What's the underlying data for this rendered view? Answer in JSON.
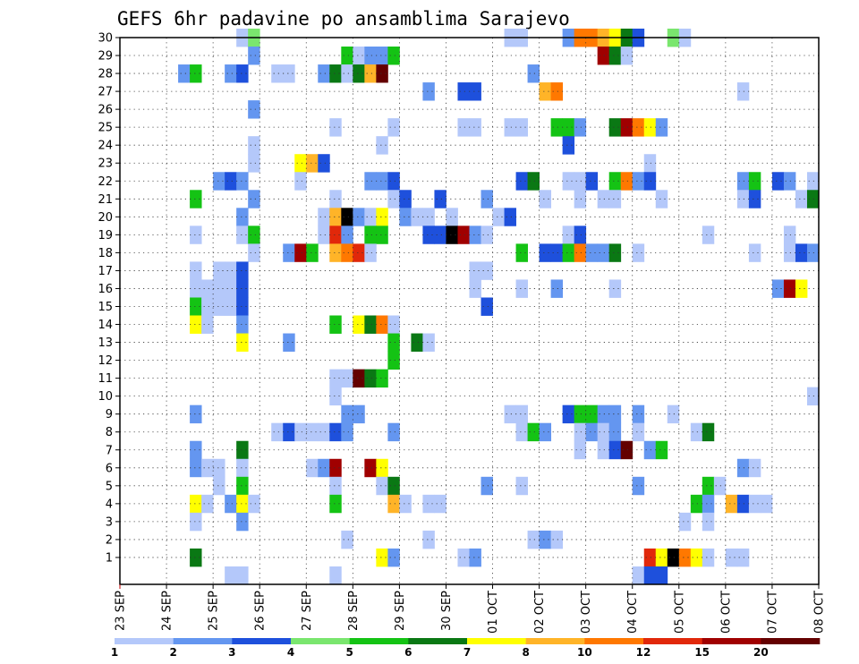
{
  "title": "GEFS 6hr padavine po ansamblima Sarajevo",
  "chart_data": {
    "type": "heatmap",
    "title": "GEFS 6hr padavine po ansamblima Sarajevo",
    "xlabel": "",
    "ylabel": "",
    "x_tick_labels": [
      "23 SEP",
      "24 SEP",
      "25 SEP",
      "26 SEP",
      "27 SEP",
      "28 SEP",
      "29 SEP",
      "30 SEP",
      "01 OCT",
      "02 OCT",
      "03 OCT",
      "04 OCT",
      "05 OCT",
      "06 OCT",
      "07 OCT",
      "08 OCT"
    ],
    "steps_per_day": 4,
    "total_steps": 60,
    "members": [
      1,
      2,
      3,
      4,
      5,
      6,
      7,
      8,
      9,
      10,
      11,
      12,
      13,
      14,
      15,
      16,
      17,
      18,
      19,
      20,
      21,
      22,
      23,
      24,
      25,
      26,
      27,
      28,
      29,
      30
    ],
    "grid": true,
    "colorbar": {
      "labels": [
        "1",
        "2",
        "3",
        "4",
        "5",
        "6",
        "7",
        "8",
        "10",
        "12",
        "15",
        "20"
      ],
      "colors": [
        "#b4c8fa",
        "#6496f0",
        "#1e50dc",
        "#7ae66e",
        "#14c314",
        "#0a7814",
        "#ffff00",
        "#ffb428",
        "#ff7800",
        "#e1280a",
        "#a00000",
        "#640000"
      ]
    },
    "cells": [
      [
        30,
        10,
        1
      ],
      [
        30,
        11,
        4
      ],
      [
        30,
        33,
        1
      ],
      [
        30,
        34,
        1
      ],
      [
        30,
        38,
        2
      ],
      [
        30,
        39,
        9
      ],
      [
        30,
        40,
        9
      ],
      [
        30,
        41,
        8
      ],
      [
        30,
        42,
        7
      ],
      [
        30,
        43,
        6
      ],
      [
        30,
        44,
        3
      ],
      [
        30,
        47,
        4
      ],
      [
        30,
        48,
        1
      ],
      [
        29,
        11,
        2
      ],
      [
        29,
        19,
        5
      ],
      [
        29,
        20,
        1
      ],
      [
        29,
        21,
        2
      ],
      [
        29,
        22,
        2
      ],
      [
        29,
        23,
        5
      ],
      [
        29,
        41,
        11
      ],
      [
        29,
        42,
        6
      ],
      [
        29,
        43,
        1
      ],
      [
        28,
        5,
        2
      ],
      [
        28,
        6,
        5
      ],
      [
        28,
        9,
        2
      ],
      [
        28,
        10,
        3
      ],
      [
        28,
        13,
        1
      ],
      [
        28,
        14,
        1
      ],
      [
        28,
        17,
        2
      ],
      [
        28,
        18,
        6
      ],
      [
        28,
        19,
        1
      ],
      [
        28,
        20,
        6
      ],
      [
        28,
        21,
        8
      ],
      [
        28,
        22,
        12
      ],
      [
        28,
        35,
        2
      ],
      [
        27,
        26,
        2
      ],
      [
        27,
        29,
        3
      ],
      [
        27,
        30,
        3
      ],
      [
        27,
        36,
        8
      ],
      [
        27,
        37,
        9
      ],
      [
        27,
        53,
        1
      ],
      [
        26,
        11,
        2
      ],
      [
        25,
        18,
        1
      ],
      [
        25,
        23,
        1
      ],
      [
        25,
        29,
        1
      ],
      [
        25,
        30,
        1
      ],
      [
        25,
        33,
        1
      ],
      [
        25,
        34,
        1
      ],
      [
        25,
        37,
        5
      ],
      [
        25,
        38,
        5
      ],
      [
        25,
        39,
        2
      ],
      [
        25,
        42,
        6
      ],
      [
        25,
        43,
        11
      ],
      [
        25,
        44,
        9
      ],
      [
        25,
        45,
        7
      ],
      [
        25,
        46,
        2
      ],
      [
        24,
        11,
        1
      ],
      [
        24,
        22,
        1
      ],
      [
        24,
        38,
        3
      ],
      [
        23,
        11,
        1
      ],
      [
        23,
        15,
        7
      ],
      [
        23,
        16,
        8
      ],
      [
        23,
        17,
        3
      ],
      [
        23,
        45,
        1
      ],
      [
        22,
        8,
        2
      ],
      [
        22,
        9,
        3
      ],
      [
        22,
        10,
        2
      ],
      [
        22,
        15,
        1
      ],
      [
        22,
        21,
        2
      ],
      [
        22,
        22,
        2
      ],
      [
        22,
        23,
        3
      ],
      [
        22,
        34,
        3
      ],
      [
        22,
        35,
        6
      ],
      [
        22,
        38,
        1
      ],
      [
        22,
        39,
        1
      ],
      [
        22,
        40,
        3
      ],
      [
        22,
        42,
        5
      ],
      [
        22,
        43,
        9
      ],
      [
        22,
        44,
        2
      ],
      [
        22,
        45,
        3
      ],
      [
        22,
        53,
        2
      ],
      [
        22,
        54,
        5
      ],
      [
        22,
        56,
        3
      ],
      [
        22,
        57,
        2
      ],
      [
        22,
        59,
        1
      ],
      [
        21,
        6,
        5
      ],
      [
        21,
        11,
        2
      ],
      [
        21,
        18,
        1
      ],
      [
        21,
        23,
        1
      ],
      [
        21,
        24,
        3
      ],
      [
        21,
        27,
        3
      ],
      [
        21,
        31,
        2
      ],
      [
        21,
        36,
        1
      ],
      [
        21,
        39,
        1
      ],
      [
        21,
        41,
        1
      ],
      [
        21,
        42,
        1
      ],
      [
        21,
        46,
        1
      ],
      [
        21,
        53,
        1
      ],
      [
        21,
        54,
        3
      ],
      [
        21,
        58,
        1
      ],
      [
        21,
        59,
        6
      ],
      [
        20,
        10,
        2
      ],
      [
        20,
        17,
        1
      ],
      [
        20,
        18,
        8
      ],
      [
        20,
        19,
        13
      ],
      [
        20,
        20,
        2
      ],
      [
        20,
        21,
        1
      ],
      [
        20,
        22,
        7
      ],
      [
        20,
        24,
        2
      ],
      [
        20,
        25,
        1
      ],
      [
        20,
        26,
        1
      ],
      [
        20,
        28,
        1
      ],
      [
        20,
        32,
        1
      ],
      [
        20,
        33,
        3
      ],
      [
        19,
        6,
        1
      ],
      [
        19,
        10,
        1
      ],
      [
        19,
        11,
        5
      ],
      [
        19,
        17,
        1
      ],
      [
        19,
        18,
        10
      ],
      [
        19,
        19,
        2
      ],
      [
        19,
        21,
        5
      ],
      [
        19,
        22,
        5
      ],
      [
        19,
        26,
        3
      ],
      [
        19,
        27,
        3
      ],
      [
        19,
        28,
        13
      ],
      [
        19,
        29,
        11
      ],
      [
        19,
        30,
        2
      ],
      [
        19,
        31,
        1
      ],
      [
        19,
        38,
        1
      ],
      [
        19,
        39,
        3
      ],
      [
        19,
        50,
        1
      ],
      [
        19,
        57,
        1
      ],
      [
        18,
        11,
        1
      ],
      [
        18,
        14,
        2
      ],
      [
        18,
        15,
        11
      ],
      [
        18,
        16,
        5
      ],
      [
        18,
        18,
        8
      ],
      [
        18,
        19,
        9
      ],
      [
        18,
        20,
        10
      ],
      [
        18,
        21,
        1
      ],
      [
        18,
        34,
        5
      ],
      [
        18,
        36,
        3
      ],
      [
        18,
        37,
        3
      ],
      [
        18,
        38,
        5
      ],
      [
        18,
        39,
        9
      ],
      [
        18,
        40,
        2
      ],
      [
        18,
        41,
        2
      ],
      [
        18,
        42,
        6
      ],
      [
        18,
        44,
        1
      ],
      [
        18,
        54,
        1
      ],
      [
        18,
        57,
        1
      ],
      [
        18,
        58,
        3
      ],
      [
        18,
        59,
        2
      ],
      [
        17,
        6,
        1
      ],
      [
        17,
        8,
        1
      ],
      [
        17,
        9,
        1
      ],
      [
        17,
        10,
        3
      ],
      [
        17,
        30,
        1
      ],
      [
        17,
        31,
        1
      ],
      [
        16,
        6,
        1
      ],
      [
        16,
        7,
        1
      ],
      [
        16,
        8,
        1
      ],
      [
        16,
        9,
        1
      ],
      [
        16,
        10,
        3
      ],
      [
        16,
        30,
        1
      ],
      [
        16,
        34,
        1
      ],
      [
        16,
        37,
        2
      ],
      [
        16,
        42,
        1
      ],
      [
        16,
        56,
        2
      ],
      [
        16,
        57,
        11
      ],
      [
        16,
        58,
        7
      ],
      [
        15,
        6,
        5
      ],
      [
        15,
        7,
        1
      ],
      [
        15,
        8,
        1
      ],
      [
        15,
        9,
        1
      ],
      [
        15,
        10,
        3
      ],
      [
        15,
        31,
        3
      ],
      [
        14,
        6,
        7
      ],
      [
        14,
        7,
        1
      ],
      [
        14,
        10,
        2
      ],
      [
        14,
        18,
        5
      ],
      [
        14,
        20,
        7
      ],
      [
        14,
        21,
        6
      ],
      [
        14,
        22,
        9
      ],
      [
        14,
        23,
        1
      ],
      [
        13,
        10,
        7
      ],
      [
        13,
        14,
        2
      ],
      [
        13,
        23,
        5
      ],
      [
        13,
        25,
        6
      ],
      [
        13,
        26,
        1
      ],
      [
        12,
        23,
        5
      ],
      [
        11,
        18,
        1
      ],
      [
        11,
        19,
        1
      ],
      [
        11,
        20,
        12
      ],
      [
        11,
        21,
        6
      ],
      [
        11,
        22,
        5
      ],
      [
        10,
        18,
        1
      ],
      [
        10,
        59,
        1
      ],
      [
        9,
        6,
        2
      ],
      [
        9,
        19,
        2
      ],
      [
        9,
        20,
        2
      ],
      [
        9,
        33,
        1
      ],
      [
        9,
        34,
        1
      ],
      [
        9,
        38,
        3
      ],
      [
        9,
        39,
        5
      ],
      [
        9,
        40,
        5
      ],
      [
        9,
        41,
        2
      ],
      [
        9,
        42,
        2
      ],
      [
        9,
        44,
        2
      ],
      [
        9,
        47,
        1
      ],
      [
        8,
        13,
        1
      ],
      [
        8,
        14,
        3
      ],
      [
        8,
        15,
        1
      ],
      [
        8,
        16,
        1
      ],
      [
        8,
        17,
        1
      ],
      [
        8,
        18,
        3
      ],
      [
        8,
        19,
        2
      ],
      [
        8,
        23,
        2
      ],
      [
        8,
        34,
        1
      ],
      [
        8,
        35,
        5
      ],
      [
        8,
        36,
        2
      ],
      [
        8,
        39,
        1
      ],
      [
        8,
        40,
        2
      ],
      [
        8,
        41,
        1
      ],
      [
        8,
        42,
        2
      ],
      [
        8,
        44,
        1
      ],
      [
        8,
        49,
        1
      ],
      [
        8,
        50,
        6
      ],
      [
        7,
        6,
        2
      ],
      [
        7,
        10,
        6
      ],
      [
        7,
        39,
        1
      ],
      [
        7,
        41,
        1
      ],
      [
        7,
        42,
        3
      ],
      [
        7,
        43,
        12
      ],
      [
        7,
        45,
        2
      ],
      [
        7,
        46,
        5
      ],
      [
        6,
        6,
        2
      ],
      [
        6,
        7,
        1
      ],
      [
        6,
        8,
        1
      ],
      [
        6,
        10,
        1
      ],
      [
        6,
        16,
        1
      ],
      [
        6,
        17,
        2
      ],
      [
        6,
        18,
        11
      ],
      [
        6,
        21,
        11
      ],
      [
        6,
        22,
        7
      ],
      [
        6,
        53,
        2
      ],
      [
        6,
        54,
        1
      ],
      [
        5,
        8,
        1
      ],
      [
        5,
        10,
        5
      ],
      [
        5,
        18,
        1
      ],
      [
        5,
        22,
        1
      ],
      [
        5,
        23,
        6
      ],
      [
        5,
        31,
        2
      ],
      [
        5,
        34,
        1
      ],
      [
        5,
        44,
        2
      ],
      [
        5,
        50,
        5
      ],
      [
        5,
        51,
        1
      ],
      [
        4,
        6,
        7
      ],
      [
        4,
        7,
        1
      ],
      [
        4,
        9,
        2
      ],
      [
        4,
        10,
        7
      ],
      [
        4,
        11,
        1
      ],
      [
        4,
        18,
        5
      ],
      [
        4,
        23,
        8
      ],
      [
        4,
        24,
        1
      ],
      [
        4,
        26,
        1
      ],
      [
        4,
        27,
        1
      ],
      [
        4,
        49,
        5
      ],
      [
        4,
        50,
        2
      ],
      [
        4,
        52,
        8
      ],
      [
        4,
        53,
        3
      ],
      [
        4,
        54,
        1
      ],
      [
        4,
        55,
        1
      ],
      [
        3,
        6,
        1
      ],
      [
        3,
        10,
        2
      ],
      [
        3,
        48,
        1
      ],
      [
        3,
        50,
        1
      ],
      [
        2,
        19,
        1
      ],
      [
        2,
        26,
        1
      ],
      [
        2,
        35,
        1
      ],
      [
        2,
        36,
        2
      ],
      [
        2,
        37,
        1
      ],
      [
        1,
        6,
        6
      ],
      [
        1,
        22,
        7
      ],
      [
        1,
        23,
        2
      ],
      [
        1,
        29,
        1
      ],
      [
        1,
        30,
        2
      ],
      [
        1,
        45,
        10
      ],
      [
        1,
        46,
        7
      ],
      [
        1,
        47,
        13
      ],
      [
        1,
        48,
        9
      ],
      [
        1,
        49,
        7
      ],
      [
        1,
        50,
        1
      ],
      [
        1,
        52,
        1
      ],
      [
        1,
        53,
        1
      ],
      [
        0,
        9,
        1
      ],
      [
        0,
        10,
        1
      ],
      [
        0,
        18,
        1
      ],
      [
        0,
        44,
        1
      ],
      [
        0,
        45,
        3
      ],
      [
        0,
        46,
        3
      ]
    ]
  }
}
